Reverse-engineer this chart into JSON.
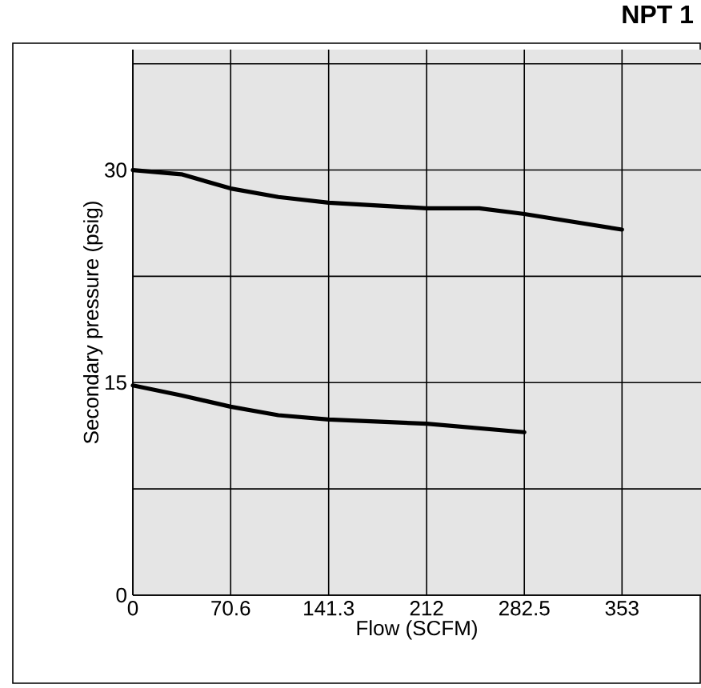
{
  "chart_data": {
    "type": "line",
    "title": "NPT 1",
    "xlabel": "Flow (SCFM)",
    "ylabel": "Secondary pressure (psig)",
    "xlim": [
      0,
      410
    ],
    "ylim": [
      0,
      38.5
    ],
    "xticks": [
      0,
      70.6,
      141.3,
      212,
      282.5,
      353
    ],
    "yticks": [
      0,
      {
        "value": 7.5,
        "label": null
      },
      15,
      {
        "value": 22.5,
        "label": null
      },
      30,
      {
        "value": 37.5,
        "label": null
      }
    ],
    "grid": true,
    "series": [
      {
        "color": "#000000",
        "x": [
          0,
          35,
          70.6,
          105,
          141.3,
          212,
          250,
          282.5,
          353
        ],
        "values": [
          30,
          29.7,
          28.7,
          28.1,
          27.7,
          27.3,
          27.3,
          26.9,
          25.8
        ]
      },
      {
        "color": "#000000",
        "x": [
          0,
          35,
          70.6,
          105,
          141.3,
          212,
          282.5
        ],
        "values": [
          14.8,
          14.1,
          13.3,
          12.7,
          12.4,
          12.1,
          11.5
        ]
      }
    ]
  }
}
